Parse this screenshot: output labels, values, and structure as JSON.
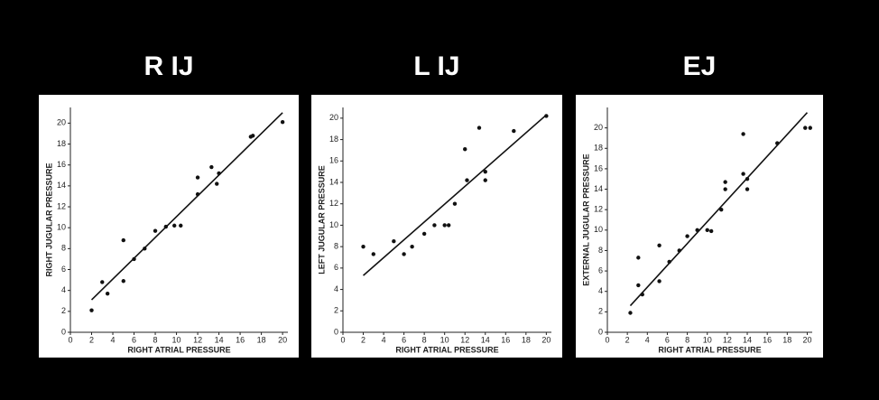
{
  "chart_data": [
    {
      "type": "scatter",
      "title": "R IJ",
      "x_label": "RIGHT ATRIAL PRESSURE",
      "y_label": "RIGHT JUGULAR PRESSURE",
      "x": [
        2,
        3,
        3.5,
        5,
        5,
        6,
        7,
        8,
        9,
        9.8,
        10.4,
        12,
        12,
        13.3,
        13.8,
        14,
        17,
        17.2,
        20
      ],
      "y": [
        2.1,
        4.8,
        3.7,
        8.8,
        4.9,
        7,
        8,
        9.7,
        10.1,
        10.2,
        10.2,
        13.2,
        14.8,
        15.8,
        14.2,
        15.2,
        18.7,
        18.8,
        20.1
      ],
      "line": {
        "x": [
          2,
          20
        ],
        "y": [
          3.1,
          21
        ]
      },
      "color": "#111",
      "xlim": [
        0,
        20.5
      ],
      "ylim": [
        0,
        21.5
      ],
      "xticks": [
        0,
        2,
        4,
        6,
        8,
        10,
        12,
        14,
        16,
        18,
        20
      ],
      "yticks": [
        0,
        2,
        4,
        6,
        8,
        10,
        12,
        14,
        16,
        18,
        20
      ]
    },
    {
      "type": "scatter",
      "title": "L IJ",
      "x_label": "RIGHT ATRIAL PRESSURE",
      "y_label": "LEFT JUGULAR PRESSURE",
      "x": [
        2,
        3,
        5,
        6,
        6.8,
        8,
        9,
        10,
        10.4,
        11,
        12,
        12.2,
        13.4,
        14,
        14,
        16.8,
        20
      ],
      "y": [
        8,
        7.3,
        8.5,
        7.3,
        8,
        9.2,
        10,
        10,
        10,
        12,
        17.1,
        14.2,
        19.1,
        14.2,
        15,
        18.8,
        20.2
      ],
      "line": {
        "x": [
          2,
          20
        ],
        "y": [
          5.3,
          20.3
        ]
      },
      "color": "#111",
      "xlim": [
        0,
        20.5
      ],
      "ylim": [
        0,
        21
      ],
      "xticks": [
        0,
        2,
        4,
        6,
        8,
        10,
        12,
        14,
        16,
        18,
        20
      ],
      "yticks": [
        0,
        2,
        4,
        6,
        8,
        10,
        12,
        14,
        16,
        18,
        20
      ]
    },
    {
      "type": "scatter",
      "title": "EJ",
      "x_label": "RIGHT ATRIAL PRESSURE",
      "y_label": "EXTERNAL JUGULAR PRESSURE",
      "x": [
        2.3,
        3.1,
        3.1,
        3.5,
        5.2,
        5.2,
        6.2,
        7.2,
        8,
        9,
        10,
        10.4,
        11.4,
        11.8,
        11.8,
        13.6,
        13.6,
        14,
        14,
        17,
        19.8,
        20.3
      ],
      "y": [
        1.9,
        7.3,
        4.6,
        3.7,
        8.5,
        5,
        6.9,
        8,
        9.4,
        10,
        10,
        9.9,
        12,
        14,
        14.7,
        19.4,
        15.5,
        15,
        14,
        18.5,
        20,
        20
      ],
      "line": {
        "x": [
          2.3,
          20
        ],
        "y": [
          2.6,
          21.5
        ]
      },
      "color": "#111",
      "xlim": [
        0,
        20.5
      ],
      "ylim": [
        0,
        22
      ],
      "xticks": [
        0,
        2,
        4,
        6,
        8,
        10,
        12,
        14,
        16,
        18,
        20
      ],
      "yticks": [
        0,
        2,
        4,
        6,
        8,
        10,
        12,
        14,
        16,
        18,
        20
      ]
    }
  ]
}
